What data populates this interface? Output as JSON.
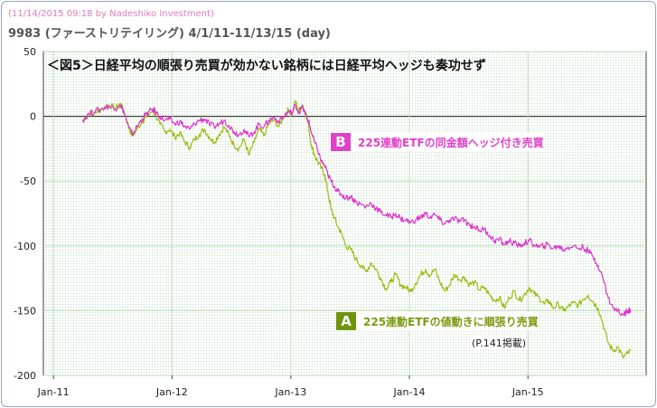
{
  "header": {
    "watermark": "(11/14/2015 09:18 by Nadeshiko Investment)",
    "subtitle": "9983 (ファーストリテイリング)  4/1/11-11/13/15 (day)"
  },
  "chart_data": {
    "type": "line",
    "title": "＜図5＞日経平均の順張り売買が効かない銘柄には日経平均ヘッジも奏功せず",
    "xlabel": "",
    "ylabel": "",
    "ylim": [
      -200,
      50
    ],
    "yticks": [
      50,
      0,
      -50,
      -100,
      -150,
      -200
    ],
    "xticks": [
      {
        "label": "Jan-11",
        "date": "2011-01-01"
      },
      {
        "label": "Jan-12",
        "date": "2012-01-01"
      },
      {
        "label": "Jan-13",
        "date": "2013-01-01"
      },
      {
        "label": "Jan-14",
        "date": "2014-01-01"
      },
      {
        "label": "Jan-15",
        "date": "2015-01-01"
      }
    ],
    "grid": true,
    "series": [
      {
        "label_letter": "A",
        "name": "225連動ETFの値動きに順張り売買",
        "note": "(P.141掲載)",
        "color": "#99bb11",
        "points": [
          [
            "2011-04-01",
            -3
          ],
          [
            "2011-04-20",
            2
          ],
          [
            "2011-05-10",
            3
          ],
          [
            "2011-06-01",
            6
          ],
          [
            "2011-06-20",
            9
          ],
          [
            "2011-07-10",
            6
          ],
          [
            "2011-07-25",
            10
          ],
          [
            "2011-08-05",
            5
          ],
          [
            "2011-08-20",
            -8
          ],
          [
            "2011-09-01",
            -15
          ],
          [
            "2011-09-15",
            -10
          ],
          [
            "2011-10-01",
            -4
          ],
          [
            "2011-10-15",
            0
          ],
          [
            "2011-11-01",
            4
          ],
          [
            "2011-11-10",
            2
          ],
          [
            "2011-11-25",
            -6
          ],
          [
            "2011-12-10",
            -12
          ],
          [
            "2011-12-25",
            -10
          ],
          [
            "2012-01-10",
            -16
          ],
          [
            "2012-01-25",
            -13
          ],
          [
            "2012-02-10",
            -20
          ],
          [
            "2012-02-25",
            -24
          ],
          [
            "2012-03-10",
            -18
          ],
          [
            "2012-03-25",
            -14
          ],
          [
            "2012-04-10",
            -10
          ],
          [
            "2012-04-25",
            -16
          ],
          [
            "2012-05-10",
            -20
          ],
          [
            "2012-05-25",
            -14
          ],
          [
            "2012-06-10",
            -8
          ],
          [
            "2012-06-25",
            -15
          ],
          [
            "2012-07-10",
            -22
          ],
          [
            "2012-07-25",
            -25
          ],
          [
            "2012-08-10",
            -18
          ],
          [
            "2012-08-25",
            -30
          ],
          [
            "2012-09-10",
            -20
          ],
          [
            "2012-09-25",
            -10
          ],
          [
            "2012-10-10",
            -15
          ],
          [
            "2012-10-25",
            -6
          ],
          [
            "2012-11-10",
            -3
          ],
          [
            "2012-11-25",
            -8
          ],
          [
            "2012-12-10",
            0
          ],
          [
            "2012-12-25",
            5
          ],
          [
            "2013-01-05",
            2
          ],
          [
            "2013-01-15",
            12
          ],
          [
            "2013-01-25",
            4
          ],
          [
            "2013-02-05",
            9
          ],
          [
            "2013-02-15",
            3
          ],
          [
            "2013-02-25",
            -8
          ],
          [
            "2013-03-05",
            -22
          ],
          [
            "2013-03-15",
            -30
          ],
          [
            "2013-03-25",
            -35
          ],
          [
            "2013-04-05",
            -40
          ],
          [
            "2013-04-15",
            -45
          ],
          [
            "2013-04-25",
            -58
          ],
          [
            "2013-05-05",
            -72
          ],
          [
            "2013-05-15",
            -78
          ],
          [
            "2013-05-25",
            -85
          ],
          [
            "2013-06-05",
            -90
          ],
          [
            "2013-06-20",
            -100
          ],
          [
            "2013-07-05",
            -103
          ],
          [
            "2013-07-20",
            -110
          ],
          [
            "2013-08-05",
            -115
          ],
          [
            "2013-08-20",
            -120
          ],
          [
            "2013-09-05",
            -113
          ],
          [
            "2013-09-20",
            -118
          ],
          [
            "2013-10-05",
            -125
          ],
          [
            "2013-10-20",
            -133
          ],
          [
            "2013-11-05",
            -128
          ],
          [
            "2013-11-20",
            -122
          ],
          [
            "2013-12-05",
            -130
          ],
          [
            "2013-12-20",
            -132
          ],
          [
            "2014-01-05",
            -135
          ],
          [
            "2014-01-20",
            -129
          ],
          [
            "2014-02-05",
            -122
          ],
          [
            "2014-02-20",
            -118
          ],
          [
            "2014-03-05",
            -123
          ],
          [
            "2014-03-20",
            -118
          ],
          [
            "2014-04-05",
            -128
          ],
          [
            "2014-04-20",
            -135
          ],
          [
            "2014-05-05",
            -130
          ],
          [
            "2014-05-20",
            -122
          ],
          [
            "2014-06-05",
            -126
          ],
          [
            "2014-06-20",
            -124
          ],
          [
            "2014-07-05",
            -130
          ],
          [
            "2014-07-20",
            -128
          ],
          [
            "2014-08-05",
            -134
          ],
          [
            "2014-08-20",
            -132
          ],
          [
            "2014-09-05",
            -138
          ],
          [
            "2014-09-20",
            -142
          ],
          [
            "2014-10-05",
            -140
          ],
          [
            "2014-10-20",
            -148
          ],
          [
            "2014-11-05",
            -140
          ],
          [
            "2014-11-20",
            -135
          ],
          [
            "2014-12-05",
            -142
          ],
          [
            "2014-12-20",
            -138
          ],
          [
            "2015-01-05",
            -132
          ],
          [
            "2015-01-20",
            -137
          ],
          [
            "2015-02-05",
            -140
          ],
          [
            "2015-02-20",
            -145
          ],
          [
            "2015-03-05",
            -142
          ],
          [
            "2015-03-20",
            -148
          ],
          [
            "2015-04-05",
            -145
          ],
          [
            "2015-04-20",
            -150
          ],
          [
            "2015-05-05",
            -147
          ],
          [
            "2015-05-20",
            -144
          ],
          [
            "2015-06-05",
            -146
          ],
          [
            "2015-06-20",
            -141
          ],
          [
            "2015-07-05",
            -138
          ],
          [
            "2015-07-20",
            -143
          ],
          [
            "2015-08-05",
            -148
          ],
          [
            "2015-08-20",
            -160
          ],
          [
            "2015-09-05",
            -175
          ],
          [
            "2015-09-20",
            -181
          ],
          [
            "2015-10-05",
            -178
          ],
          [
            "2015-10-20",
            -186
          ],
          [
            "2015-11-05",
            -183
          ],
          [
            "2015-11-13",
            -181
          ]
        ]
      },
      {
        "label_letter": "B",
        "name": "225連動ETFの同金額ヘッジ付き売買",
        "color": "#dd33cc",
        "points": [
          [
            "2011-04-01",
            -3
          ],
          [
            "2011-04-20",
            2
          ],
          [
            "2011-05-10",
            4
          ],
          [
            "2011-06-01",
            6
          ],
          [
            "2011-06-20",
            8
          ],
          [
            "2011-07-10",
            6
          ],
          [
            "2011-07-25",
            9
          ],
          [
            "2011-08-05",
            4
          ],
          [
            "2011-08-20",
            -8
          ],
          [
            "2011-09-01",
            -14
          ],
          [
            "2011-09-15",
            -8
          ],
          [
            "2011-10-01",
            -2
          ],
          [
            "2011-10-15",
            2
          ],
          [
            "2011-11-01",
            5
          ],
          [
            "2011-11-10",
            4
          ],
          [
            "2011-11-25",
            0
          ],
          [
            "2011-12-10",
            -3
          ],
          [
            "2011-12-25",
            -2
          ],
          [
            "2012-01-10",
            -6
          ],
          [
            "2012-01-25",
            -4
          ],
          [
            "2012-02-10",
            -8
          ],
          [
            "2012-02-25",
            -10
          ],
          [
            "2012-03-10",
            -6
          ],
          [
            "2012-03-25",
            -3
          ],
          [
            "2012-04-10",
            -2
          ],
          [
            "2012-04-25",
            -6
          ],
          [
            "2012-05-10",
            -8
          ],
          [
            "2012-05-25",
            -6
          ],
          [
            "2012-06-10",
            -3
          ],
          [
            "2012-06-25",
            -7
          ],
          [
            "2012-07-10",
            -12
          ],
          [
            "2012-07-25",
            -14
          ],
          [
            "2012-08-10",
            -10
          ],
          [
            "2012-08-25",
            -16
          ],
          [
            "2012-09-10",
            -12
          ],
          [
            "2012-09-25",
            -6
          ],
          [
            "2012-10-10",
            -8
          ],
          [
            "2012-10-25",
            -3
          ],
          [
            "2012-11-10",
            -1
          ],
          [
            "2012-11-25",
            -4
          ],
          [
            "2012-12-10",
            0
          ],
          [
            "2012-12-25",
            4
          ],
          [
            "2013-01-05",
            2
          ],
          [
            "2013-01-15",
            9
          ],
          [
            "2013-01-25",
            3
          ],
          [
            "2013-02-05",
            7
          ],
          [
            "2013-02-15",
            2
          ],
          [
            "2013-02-25",
            -4
          ],
          [
            "2013-03-05",
            -12
          ],
          [
            "2013-03-15",
            -20
          ],
          [
            "2013-03-25",
            -26
          ],
          [
            "2013-04-05",
            -35
          ],
          [
            "2013-04-15",
            -38
          ],
          [
            "2013-04-25",
            -45
          ],
          [
            "2013-05-05",
            -50
          ],
          [
            "2013-05-15",
            -54
          ],
          [
            "2013-05-25",
            -58
          ],
          [
            "2013-06-05",
            -60
          ],
          [
            "2013-06-20",
            -63
          ],
          [
            "2013-07-05",
            -62
          ],
          [
            "2013-07-20",
            -66
          ],
          [
            "2013-08-05",
            -68
          ],
          [
            "2013-08-20",
            -70
          ],
          [
            "2013-09-05",
            -67
          ],
          [
            "2013-09-20",
            -71
          ],
          [
            "2013-10-05",
            -74
          ],
          [
            "2013-10-20",
            -76
          ],
          [
            "2013-11-05",
            -78
          ],
          [
            "2013-11-20",
            -75
          ],
          [
            "2013-12-05",
            -79
          ],
          [
            "2013-12-20",
            -80
          ],
          [
            "2014-01-05",
            -82
          ],
          [
            "2014-01-20",
            -80
          ],
          [
            "2014-02-05",
            -78
          ],
          [
            "2014-02-20",
            -75
          ],
          [
            "2014-03-05",
            -78
          ],
          [
            "2014-03-20",
            -76
          ],
          [
            "2014-04-05",
            -80
          ],
          [
            "2014-04-20",
            -83
          ],
          [
            "2014-05-05",
            -80
          ],
          [
            "2014-05-20",
            -79
          ],
          [
            "2014-06-05",
            -81
          ],
          [
            "2014-06-20",
            -80
          ],
          [
            "2014-07-05",
            -84
          ],
          [
            "2014-07-20",
            -85
          ],
          [
            "2014-08-05",
            -88
          ],
          [
            "2014-08-20",
            -87
          ],
          [
            "2014-09-05",
            -92
          ],
          [
            "2014-09-20",
            -96
          ],
          [
            "2014-10-05",
            -95
          ],
          [
            "2014-10-20",
            -99
          ],
          [
            "2014-11-05",
            -96
          ],
          [
            "2014-11-20",
            -98
          ],
          [
            "2014-12-05",
            -100
          ],
          [
            "2014-12-20",
            -98
          ],
          [
            "2015-01-05",
            -96
          ],
          [
            "2015-01-20",
            -99
          ],
          [
            "2015-02-05",
            -101
          ],
          [
            "2015-02-20",
            -100
          ],
          [
            "2015-03-05",
            -99
          ],
          [
            "2015-03-20",
            -102
          ],
          [
            "2015-04-05",
            -100
          ],
          [
            "2015-04-20",
            -103
          ],
          [
            "2015-05-05",
            -101
          ],
          [
            "2015-05-20",
            -100
          ],
          [
            "2015-06-05",
            -102
          ],
          [
            "2015-06-20",
            -101
          ],
          [
            "2015-07-05",
            -104
          ],
          [
            "2015-07-20",
            -108
          ],
          [
            "2015-08-05",
            -115
          ],
          [
            "2015-08-20",
            -125
          ],
          [
            "2015-09-05",
            -140
          ],
          [
            "2015-09-20",
            -148
          ],
          [
            "2015-10-05",
            -150
          ],
          [
            "2015-10-20",
            -153
          ],
          [
            "2015-11-05",
            -150
          ],
          [
            "2015-11-13",
            -149
          ]
        ]
      }
    ]
  }
}
